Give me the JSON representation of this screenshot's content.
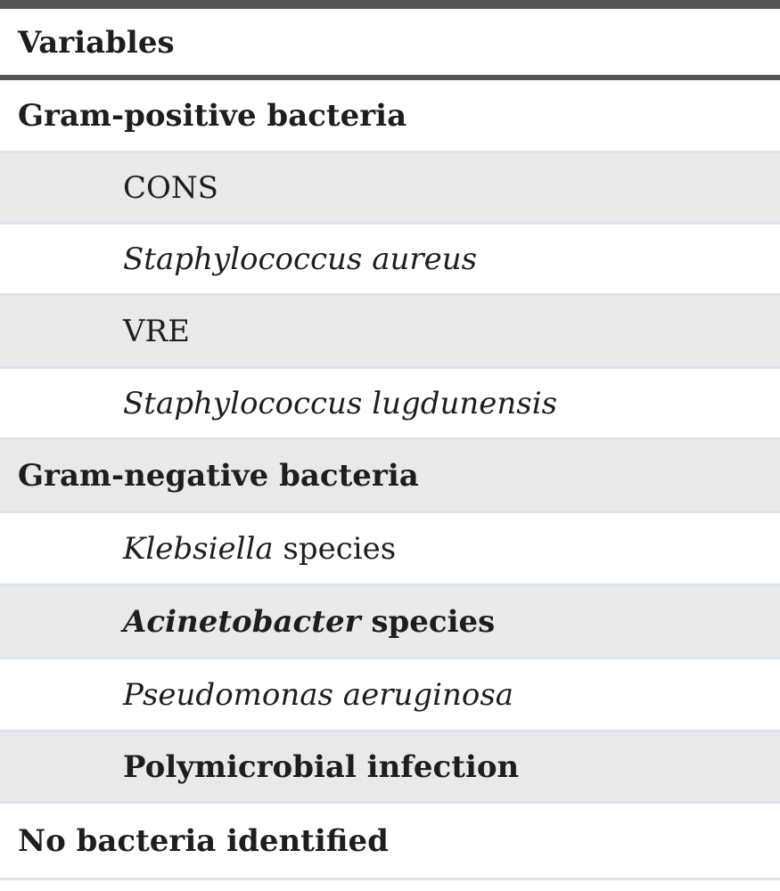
{
  "table": {
    "header": "Variables",
    "rows": [
      {
        "label": "Gram-positive bacteria"
      },
      {
        "label": "CONS"
      },
      {
        "label": "Staphylococcus aureus"
      },
      {
        "label": "VRE"
      },
      {
        "label": "Staphylococcus lugdunensis"
      },
      {
        "label": "Gram-negative bacteria"
      },
      {
        "label_italic": "Klebsiella",
        "label_rest": " species"
      },
      {
        "label_italic": "Acinetobacter",
        "label_rest": " species"
      },
      {
        "label": "Pseudomonas aeruginosa"
      },
      {
        "label": "Polymicrobial infection"
      },
      {
        "label": "No bacteria identified"
      }
    ]
  }
}
